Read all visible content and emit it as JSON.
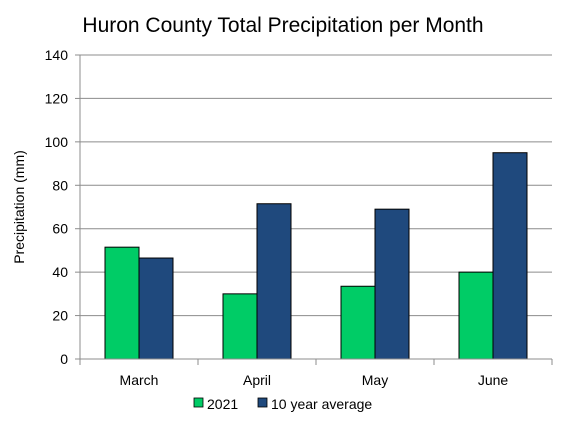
{
  "chart_data": {
    "type": "bar",
    "title": "Huron County Total Precipitation per Month",
    "ylabel": "Precipitation (mm)",
    "xlabel": "",
    "categories": [
      "March",
      "April",
      "May",
      "June"
    ],
    "ylim": [
      0,
      140
    ],
    "yticks": [
      "0",
      "20",
      "40",
      "60",
      "80",
      "100",
      "120",
      "140"
    ],
    "grid": true,
    "legend_position": "bottom",
    "series": [
      {
        "name": "2021",
        "color": "#00cc66",
        "values": [
          51.5,
          30,
          33.5,
          40
        ]
      },
      {
        "name": "10 year average",
        "color": "#1f497d",
        "values": [
          46.5,
          71.5,
          69,
          95
        ]
      }
    ]
  }
}
